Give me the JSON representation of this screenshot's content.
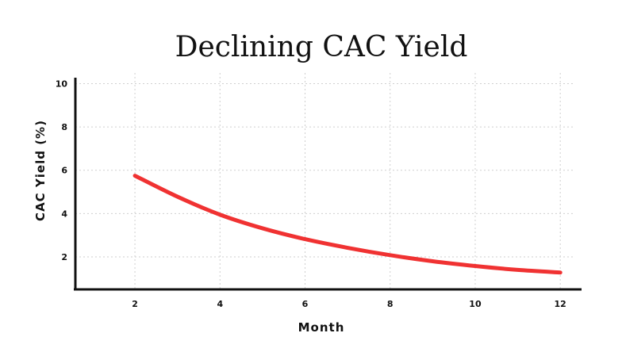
{
  "chart_data": {
    "type": "line",
    "title": "Declining CAC Yield",
    "xlabel": "Month",
    "ylabel": "CAC Yield (%)",
    "xlim": [
      0.6,
      12.5
    ],
    "ylim": [
      0.5,
      10.2
    ],
    "xticks": [
      2,
      4,
      6,
      8,
      10,
      12
    ],
    "yticks": [
      2,
      4,
      6,
      8,
      10
    ],
    "grid": true,
    "series": [
      {
        "name": "CAC Yield",
        "color": "#f03232",
        "x": [
          2,
          3,
          4,
          5,
          6,
          7,
          8,
          9,
          10,
          11,
          12
        ],
        "y": [
          5.75,
          4.78,
          3.95,
          3.32,
          2.82,
          2.42,
          2.08,
          1.8,
          1.58,
          1.4,
          1.28
        ]
      }
    ]
  }
}
